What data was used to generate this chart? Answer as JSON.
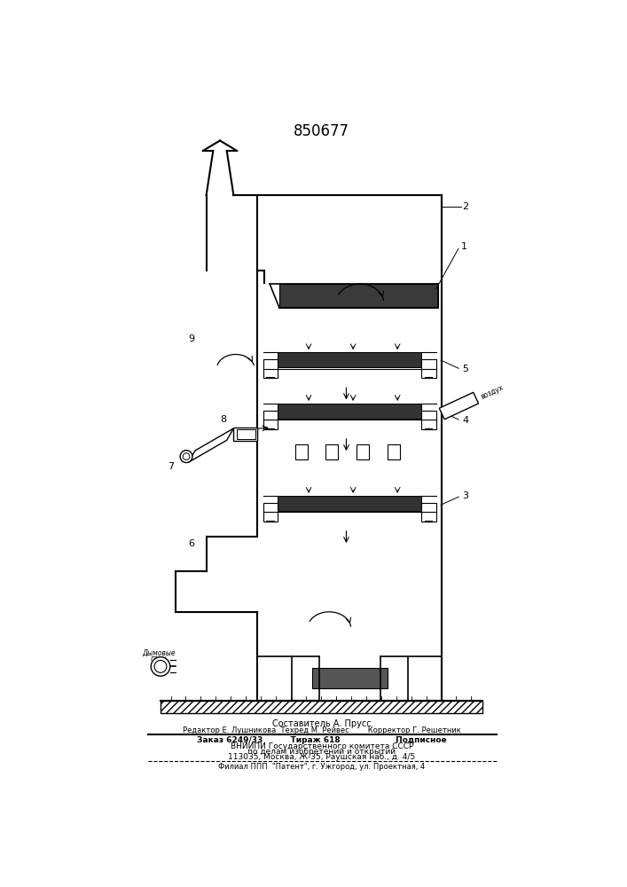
{
  "patent_number": "850677",
  "footer_lines": [
    "Составитель А. Прусс",
    "Редактор Е. Лушникова  Техред М. Рейвес        Корректор Г. Решетник",
    "Заказ 6249/33          Тираж 618                    Подписное",
    "ВНИИПИ Государственного комитета СССР",
    "по делам изобретений и открытий",
    "113035, Москва, Ж-35, Раушская наб., д. 4/5",
    "Филиал ППП  \"Патент\", г. Ужгород, ул. Проектная, 4"
  ],
  "bg_color": "#ffffff"
}
